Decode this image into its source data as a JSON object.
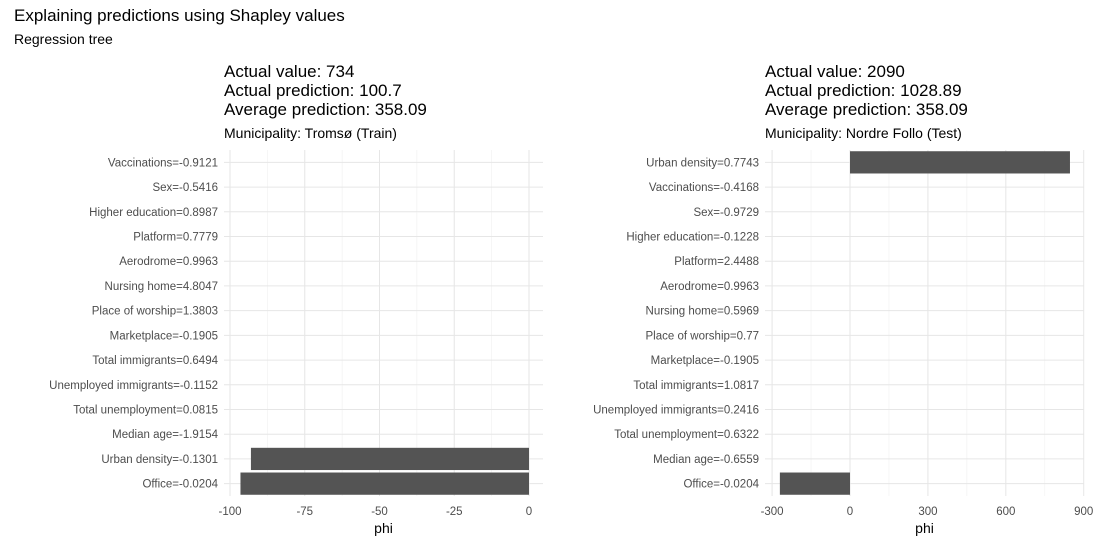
{
  "title": "Explaining predictions using Shapley values",
  "subtitle": "Regression tree",
  "chart_data": [
    {
      "type": "bar",
      "orientation": "horizontal",
      "header": [
        "Actual value: 734",
        "Actual prediction: 100.7",
        "Average prediction: 358.09"
      ],
      "facet_label": "Municipality: Tromsø (Train)",
      "xlabel": "phi",
      "xlim": [
        -100,
        5
      ],
      "xticks": [
        -100,
        -75,
        -50,
        -25,
        0
      ],
      "tick_labels": [
        "-100",
        "-75",
        "-50",
        "-25",
        "0"
      ],
      "grid": true,
      "categories": [
        "Vaccinations=-0.9121",
        "Sex=-0.5416",
        "Higher education=0.8987",
        "Platform=0.7779",
        "Aerodrome=0.9963",
        "Nursing home=4.8047",
        "Place of worship=1.3803",
        "Marketplace=-0.1905",
        "Total immigrants=0.6494",
        "Unemployed immigrants=-0.1152",
        "Total unemployment=0.0815",
        "Median age=-1.9154",
        "Urban density=-0.1301",
        "Office=-0.0204"
      ],
      "values": [
        0,
        0,
        0,
        0,
        0,
        0,
        0,
        0,
        0,
        0,
        0,
        0,
        -93,
        -96.5
      ],
      "bar_color": "#545454"
    },
    {
      "type": "bar",
      "orientation": "horizontal",
      "header": [
        "Actual value: 2090",
        "Actual prediction: 1028.89",
        "Average prediction: 358.09"
      ],
      "facet_label": "Municipality: Nordre Follo (Test)",
      "xlabel": "phi",
      "xlim": [
        -300,
        900
      ],
      "xticks": [
        -300,
        0,
        300,
        600,
        900
      ],
      "tick_labels": [
        "-300",
        "0",
        "300",
        "600",
        "900"
      ],
      "grid": true,
      "categories": [
        "Urban density=0.7743",
        "Vaccinations=-0.4168",
        "Sex=-0.9729",
        "Higher education=-0.1228",
        "Platform=2.4488",
        "Aerodrome=0.9963",
        "Nursing home=0.5969",
        "Place of worship=0.77",
        "Marketplace=-0.1905",
        "Total immigrants=1.0817",
        "Unemployed immigrants=0.2416",
        "Total unemployment=0.6322",
        "Median age=-0.6559",
        "Office=-0.0204"
      ],
      "values": [
        847,
        0,
        0,
        0,
        0,
        0,
        0,
        0,
        0,
        0,
        0,
        0,
        0,
        -270
      ],
      "bar_color": "#545454"
    }
  ]
}
